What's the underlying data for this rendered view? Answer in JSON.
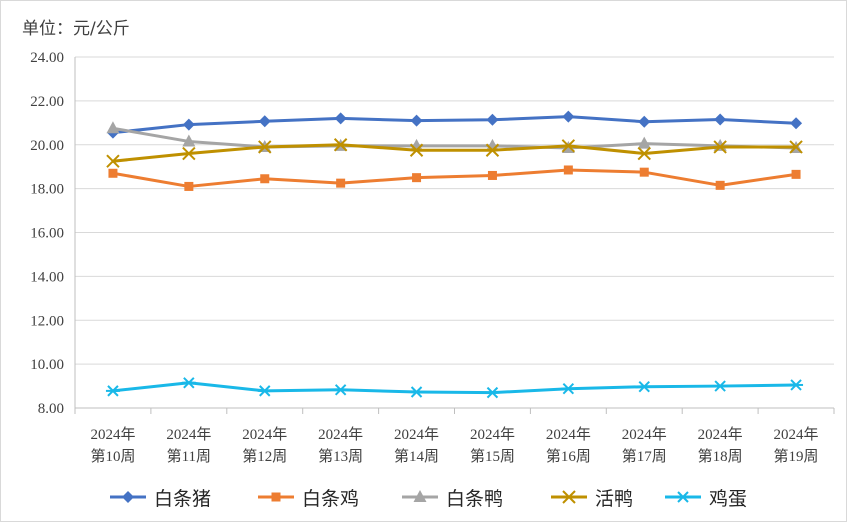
{
  "chart_data": {
    "type": "line",
    "unit_label": "单位：元/公斤",
    "categories": [
      [
        "2024年",
        "第10周"
      ],
      [
        "2024年",
        "第11周"
      ],
      [
        "2024年",
        "第12周"
      ],
      [
        "2024年",
        "第13周"
      ],
      [
        "2024年",
        "第14周"
      ],
      [
        "2024年",
        "第15周"
      ],
      [
        "2024年",
        "第16周"
      ],
      [
        "2024年",
        "第17周"
      ],
      [
        "2024年",
        "第18周"
      ],
      [
        "2024年",
        "第19周"
      ]
    ],
    "ylim": [
      8.0,
      24.0
    ],
    "yticks": [
      "8.00",
      "10.00",
      "12.00",
      "14.00",
      "16.00",
      "18.00",
      "20.00",
      "22.00",
      "24.00"
    ],
    "grid": true,
    "legend_position": "bottom",
    "series": [
      {
        "name": "白条猪",
        "color": "#4472c4",
        "marker": "diamond",
        "values": [
          20.55,
          20.92,
          21.07,
          21.2,
          21.1,
          21.14,
          21.28,
          21.05,
          21.15,
          20.98
        ]
      },
      {
        "name": "白条鸡",
        "color": "#ed7d31",
        "marker": "square",
        "values": [
          18.7,
          18.1,
          18.45,
          18.25,
          18.5,
          18.6,
          18.85,
          18.75,
          18.15,
          18.65
        ]
      },
      {
        "name": "白条鸭",
        "color": "#a5a5a5",
        "marker": "triangle",
        "values": [
          20.75,
          20.15,
          19.9,
          19.95,
          19.95,
          19.95,
          19.85,
          20.05,
          19.95,
          19.85
        ]
      },
      {
        "name": "活鸭",
        "color": "#bf9000",
        "marker": "x",
        "values": [
          19.25,
          19.6,
          19.9,
          20.0,
          19.75,
          19.75,
          19.95,
          19.6,
          19.9,
          19.9
        ]
      },
      {
        "name": "鸡蛋",
        "color": "#19b8e8",
        "marker": "star",
        "values": [
          8.78,
          9.15,
          8.78,
          8.83,
          8.73,
          8.7,
          8.88,
          8.97,
          9.0,
          9.05
        ]
      }
    ]
  }
}
